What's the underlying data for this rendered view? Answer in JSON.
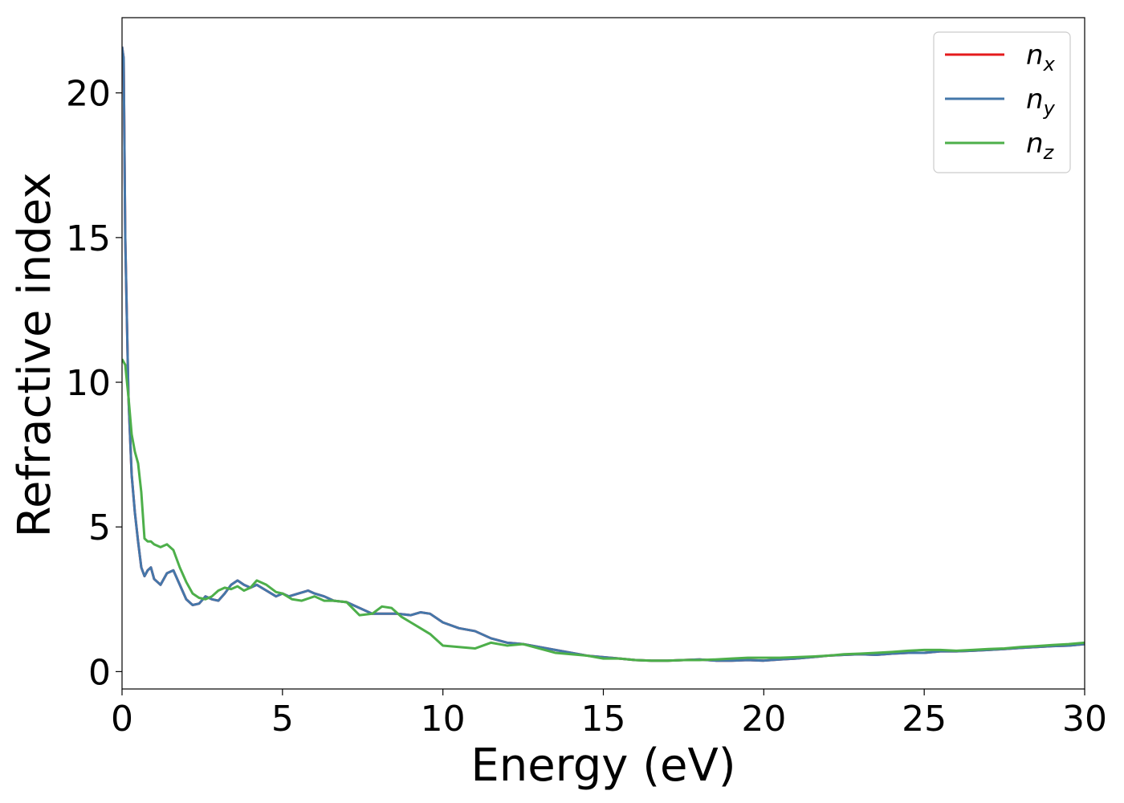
{
  "chart_data": {
    "type": "line",
    "xlabel": "Energy (eV)",
    "ylabel": "Refractive index",
    "xlim": [
      0,
      30
    ],
    "ylim": [
      -0.6,
      22.6
    ],
    "xticks": [
      0,
      5,
      10,
      15,
      20,
      25,
      30
    ],
    "yticks": [
      0,
      5,
      10,
      15,
      20
    ],
    "xtick_labels": [
      "0",
      "5",
      "10",
      "15",
      "20",
      "25",
      "30"
    ],
    "ytick_labels": [
      "0",
      "5",
      "10",
      "15",
      "20"
    ],
    "grid": false,
    "legend_position": "top-right",
    "series": [
      {
        "name": "n",
        "subscript": "x",
        "color": "#e41a1c",
        "x": [
          0,
          0.05,
          0.1,
          0.2,
          0.3,
          0.4,
          0.5,
          0.6,
          0.7,
          0.8,
          0.9,
          1.0,
          1.2,
          1.4,
          1.6,
          1.8,
          2.0,
          2.2,
          2.4,
          2.6,
          2.8,
          3.0,
          3.2,
          3.4,
          3.6,
          3.8,
          4.0,
          4.2,
          4.5,
          4.8,
          5.0,
          5.2,
          5.5,
          5.8,
          6.0,
          6.3,
          6.6,
          7.0,
          7.4,
          7.8,
          8.2,
          8.6,
          9.0,
          9.3,
          9.6,
          10.0,
          10.5,
          11.0,
          11.5,
          12.0,
          12.5,
          13.0,
          13.5,
          14.0,
          14.5,
          15.0,
          15.5,
          16.0,
          16.5,
          17.0,
          17.5,
          18.0,
          18.5,
          19.0,
          19.5,
          20.0,
          20.5,
          21.0,
          21.5,
          22.0,
          22.5,
          23.0,
          23.5,
          24.0,
          24.5,
          25.0,
          25.5,
          26.0,
          26.5,
          27.0,
          27.5,
          28.0,
          28.5,
          29.0,
          29.5,
          30.0
        ],
        "y": [
          21.6,
          21.2,
          15.0,
          9.5,
          6.8,
          5.5,
          4.5,
          3.6,
          3.3,
          3.5,
          3.6,
          3.2,
          3.0,
          3.4,
          3.5,
          3.0,
          2.5,
          2.3,
          2.35,
          2.6,
          2.5,
          2.45,
          2.7,
          3.0,
          3.15,
          3.0,
          2.9,
          3.0,
          2.8,
          2.6,
          2.7,
          2.6,
          2.7,
          2.8,
          2.7,
          2.6,
          2.45,
          2.4,
          2.2,
          2.0,
          2.0,
          2.0,
          1.95,
          2.05,
          2.0,
          1.7,
          1.5,
          1.4,
          1.15,
          1.0,
          0.95,
          0.85,
          0.75,
          0.65,
          0.55,
          0.5,
          0.45,
          0.4,
          0.38,
          0.38,
          0.4,
          0.42,
          0.38,
          0.38,
          0.4,
          0.38,
          0.42,
          0.45,
          0.5,
          0.55,
          0.58,
          0.6,
          0.58,
          0.62,
          0.65,
          0.65,
          0.7,
          0.7,
          0.72,
          0.75,
          0.78,
          0.82,
          0.85,
          0.88,
          0.9,
          0.95
        ]
      },
      {
        "name": "n",
        "subscript": "y",
        "color": "#4477aa",
        "x": [
          0,
          0.05,
          0.1,
          0.2,
          0.3,
          0.4,
          0.5,
          0.6,
          0.7,
          0.8,
          0.9,
          1.0,
          1.2,
          1.4,
          1.6,
          1.8,
          2.0,
          2.2,
          2.4,
          2.6,
          2.8,
          3.0,
          3.2,
          3.4,
          3.6,
          3.8,
          4.0,
          4.2,
          4.5,
          4.8,
          5.0,
          5.2,
          5.5,
          5.8,
          6.0,
          6.3,
          6.6,
          7.0,
          7.4,
          7.8,
          8.2,
          8.6,
          9.0,
          9.3,
          9.6,
          10.0,
          10.5,
          11.0,
          11.5,
          12.0,
          12.5,
          13.0,
          13.5,
          14.0,
          14.5,
          15.0,
          15.5,
          16.0,
          16.5,
          17.0,
          17.5,
          18.0,
          18.5,
          19.0,
          19.5,
          20.0,
          20.5,
          21.0,
          21.5,
          22.0,
          22.5,
          23.0,
          23.5,
          24.0,
          24.5,
          25.0,
          25.5,
          26.0,
          26.5,
          27.0,
          27.5,
          28.0,
          28.5,
          29.0,
          29.5,
          30.0
        ],
        "y": [
          21.6,
          21.2,
          15.0,
          9.5,
          6.8,
          5.5,
          4.5,
          3.6,
          3.3,
          3.5,
          3.6,
          3.2,
          3.0,
          3.4,
          3.5,
          3.0,
          2.5,
          2.3,
          2.35,
          2.6,
          2.5,
          2.45,
          2.7,
          3.0,
          3.15,
          3.0,
          2.9,
          3.0,
          2.8,
          2.6,
          2.7,
          2.6,
          2.7,
          2.8,
          2.7,
          2.6,
          2.45,
          2.4,
          2.2,
          2.0,
          2.0,
          2.0,
          1.95,
          2.05,
          2.0,
          1.7,
          1.5,
          1.4,
          1.15,
          1.0,
          0.95,
          0.85,
          0.75,
          0.65,
          0.55,
          0.5,
          0.45,
          0.4,
          0.38,
          0.38,
          0.4,
          0.42,
          0.38,
          0.38,
          0.4,
          0.38,
          0.42,
          0.45,
          0.5,
          0.55,
          0.58,
          0.6,
          0.58,
          0.62,
          0.65,
          0.65,
          0.7,
          0.7,
          0.72,
          0.75,
          0.78,
          0.82,
          0.85,
          0.88,
          0.9,
          0.95
        ]
      },
      {
        "name": "n",
        "subscript": "z",
        "color": "#4daf4a",
        "x": [
          0,
          0.1,
          0.2,
          0.3,
          0.4,
          0.5,
          0.6,
          0.7,
          0.8,
          0.9,
          1.0,
          1.2,
          1.4,
          1.6,
          1.8,
          2.0,
          2.2,
          2.4,
          2.6,
          2.8,
          3.0,
          3.2,
          3.4,
          3.6,
          3.8,
          4.0,
          4.2,
          4.5,
          4.8,
          5.0,
          5.3,
          5.6,
          6.0,
          6.3,
          6.6,
          7.0,
          7.4,
          7.8,
          8.1,
          8.4,
          8.7,
          9.0,
          9.3,
          9.6,
          10.0,
          10.5,
          11.0,
          11.5,
          12.0,
          12.5,
          13.0,
          13.5,
          14.0,
          14.5,
          15.0,
          15.5,
          16.0,
          16.5,
          17.0,
          17.5,
          18.0,
          18.5,
          19.0,
          19.5,
          20.0,
          20.5,
          21.0,
          21.5,
          22.0,
          22.5,
          23.0,
          23.5,
          24.0,
          24.5,
          25.0,
          25.5,
          26.0,
          26.5,
          27.0,
          27.5,
          28.0,
          28.5,
          29.0,
          29.5,
          30.0
        ],
        "y": [
          10.8,
          10.6,
          9.5,
          8.2,
          7.6,
          7.2,
          6.2,
          4.6,
          4.5,
          4.5,
          4.4,
          4.3,
          4.4,
          4.2,
          3.6,
          3.1,
          2.7,
          2.55,
          2.5,
          2.6,
          2.8,
          2.9,
          2.85,
          2.95,
          2.8,
          2.9,
          3.15,
          3.0,
          2.75,
          2.7,
          2.5,
          2.45,
          2.6,
          2.45,
          2.45,
          2.4,
          1.95,
          2.0,
          2.25,
          2.2,
          1.9,
          1.7,
          1.5,
          1.3,
          0.9,
          0.85,
          0.8,
          1.0,
          0.9,
          0.95,
          0.8,
          0.65,
          0.6,
          0.55,
          0.45,
          0.45,
          0.4,
          0.38,
          0.38,
          0.4,
          0.4,
          0.42,
          0.45,
          0.48,
          0.48,
          0.48,
          0.5,
          0.52,
          0.55,
          0.6,
          0.62,
          0.65,
          0.68,
          0.72,
          0.75,
          0.75,
          0.72,
          0.75,
          0.78,
          0.8,
          0.85,
          0.88,
          0.92,
          0.95,
          1.0
        ]
      }
    ]
  }
}
